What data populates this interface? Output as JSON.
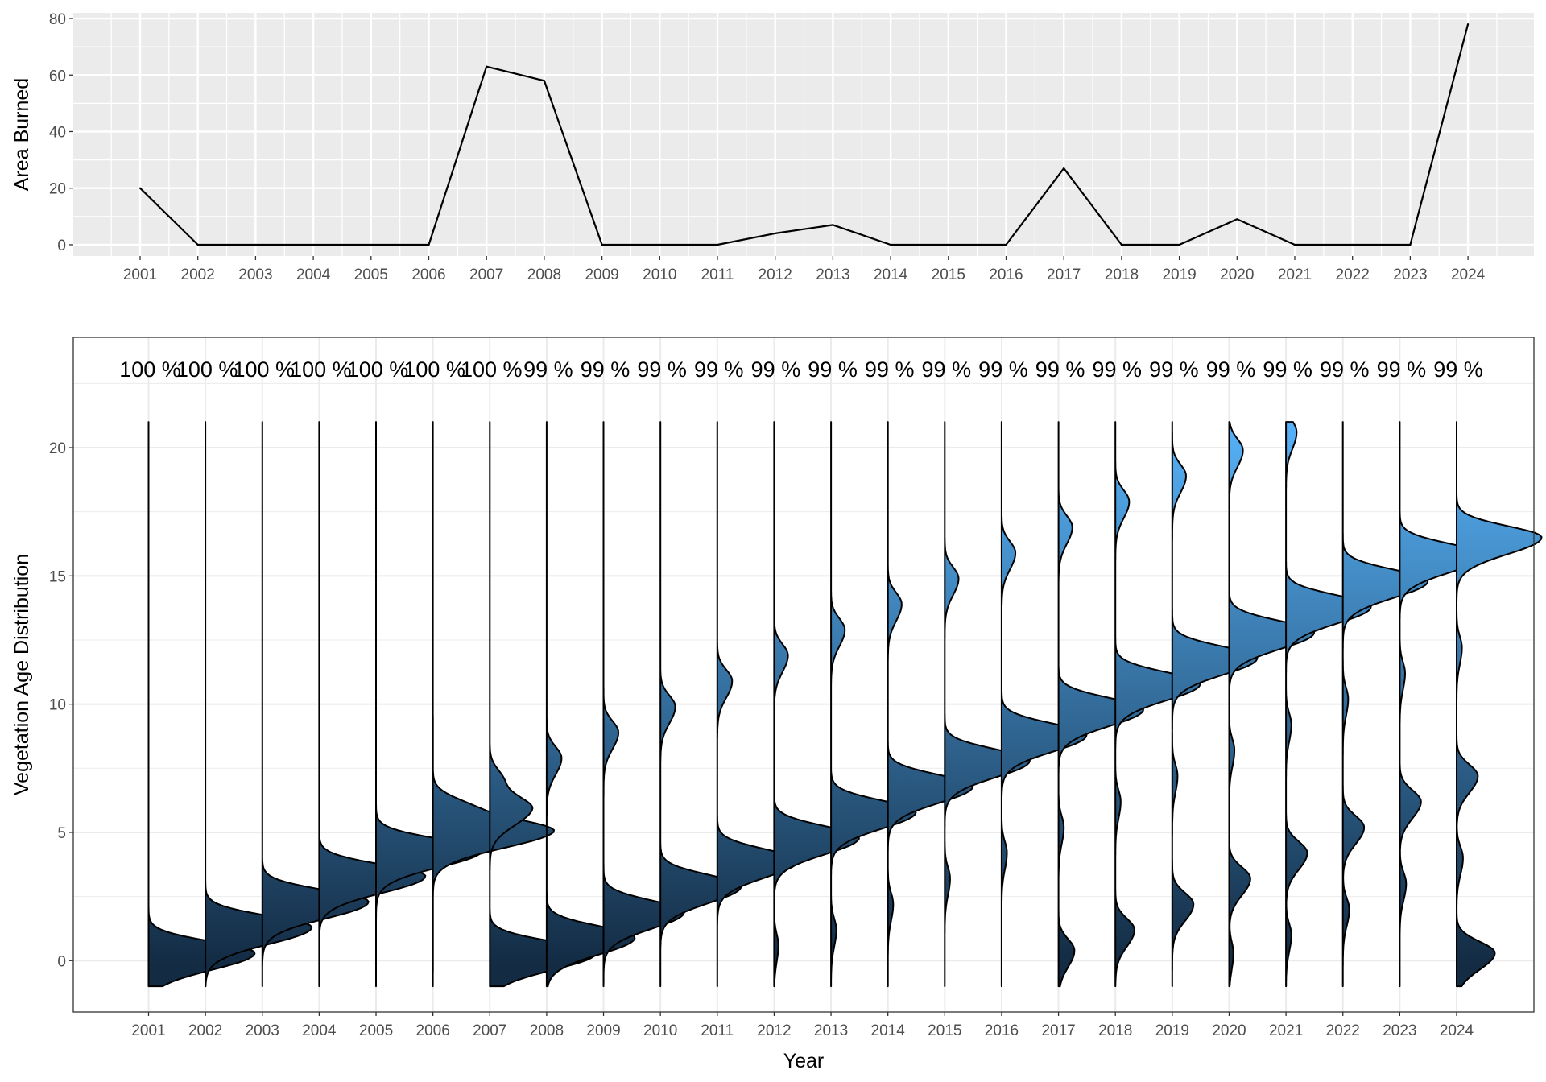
{
  "chart_data": [
    {
      "type": "line",
      "title": "",
      "xlabel": "",
      "ylabel": "Area Burned",
      "x": [
        "2001",
        "2002",
        "2003",
        "2004",
        "2005",
        "2006",
        "2007",
        "2008",
        "2009",
        "2010",
        "2011",
        "2012",
        "2013",
        "2014",
        "2015",
        "2016",
        "2017",
        "2018",
        "2019",
        "2020",
        "2021",
        "2022",
        "2023",
        "2024"
      ],
      "y": [
        20,
        0,
        0,
        0,
        0,
        0,
        63,
        58,
        0,
        0,
        0,
        4,
        7,
        0,
        0,
        0,
        27,
        0,
        0,
        9,
        0,
        0,
        0,
        78
      ],
      "ylim": [
        -4,
        82
      ],
      "yticks": [
        "0",
        "20",
        "40",
        "60",
        "80"
      ],
      "grid": true,
      "line_color": "#000000",
      "panel_background": "#ebebeb"
    },
    {
      "type": "area",
      "subtype": "half-violin density (ridgeline, vertical)",
      "title": "",
      "xlabel": "Year",
      "ylabel": "Vegetation Age Distribution",
      "categories": [
        "2001",
        "2002",
        "2003",
        "2004",
        "2005",
        "2006",
        "2007",
        "2008",
        "2009",
        "2010",
        "2011",
        "2012",
        "2013",
        "2014",
        "2015",
        "2016",
        "2017",
        "2018",
        "2019",
        "2020",
        "2021",
        "2022",
        "2023",
        "2024"
      ],
      "annotations": [
        "100 %",
        "100 %",
        "100 %",
        "100 %",
        "100 %",
        "100 %",
        "100 %",
        "99 %",
        "99 %",
        "99 %",
        "99 %",
        "99 %",
        "99 %",
        "99 %",
        "99 %",
        "99 %",
        "99 %",
        "99 %",
        "99 %",
        "99 %",
        "99 %",
        "99 %",
        "99 %",
        "99 %"
      ],
      "ylim": [
        -2.0,
        24.3
      ],
      "yticks": [
        "0",
        "5",
        "10",
        "15",
        "20"
      ],
      "density_range": [
        -1,
        21
      ],
      "series": [
        {
          "year": "2001",
          "peaks": [
            {
              "age": 0.3,
              "height": 1.0
            }
          ]
        },
        {
          "year": "2002",
          "peaks": [
            {
              "age": 1.3,
              "height": 1.0
            }
          ]
        },
        {
          "year": "2003",
          "peaks": [
            {
              "age": 2.3,
              "height": 1.0
            }
          ]
        },
        {
          "year": "2004",
          "peaks": [
            {
              "age": 3.3,
              "height": 1.0
            }
          ]
        },
        {
          "year": "2005",
          "peaks": [
            {
              "age": 4.3,
              "height": 1.0
            }
          ]
        },
        {
          "year": "2006",
          "peaks": [
            {
              "age": 5.0,
              "height": 1.0
            },
            {
              "age": 5.9,
              "height": 0.35
            }
          ]
        },
        {
          "year": "2007",
          "peaks": [
            {
              "age": 0.3,
              "height": 1.0
            },
            {
              "age": 5.9,
              "height": 0.37
            },
            {
              "age": 7.0,
              "height": 0.13
            }
          ]
        },
        {
          "year": "2008",
          "peaks": [
            {
              "age": 0.9,
              "height": 0.83
            },
            {
              "age": 7.9,
              "height": 0.14
            }
          ]
        },
        {
          "year": "2009",
          "peaks": [
            {
              "age": 1.9,
              "height": 0.76
            },
            {
              "age": 8.9,
              "height": 0.14
            }
          ]
        },
        {
          "year": "2010",
          "peaks": [
            {
              "age": 2.9,
              "height": 0.76
            },
            {
              "age": 9.9,
              "height": 0.14
            }
          ]
        },
        {
          "year": "2011",
          "peaks": [
            {
              "age": 3.9,
              "height": 0.76
            },
            {
              "age": 10.9,
              "height": 0.14
            }
          ]
        },
        {
          "year": "2012",
          "peaks": [
            {
              "age": 0.6,
              "height": 0.04
            },
            {
              "age": 4.8,
              "height": 0.8
            },
            {
              "age": 11.9,
              "height": 0.13
            }
          ]
        },
        {
          "year": "2013",
          "peaks": [
            {
              "age": 1.2,
              "height": 0.05
            },
            {
              "age": 5.8,
              "height": 0.8
            },
            {
              "age": 12.9,
              "height": 0.13
            }
          ]
        },
        {
          "year": "2014",
          "peaks": [
            {
              "age": 2.2,
              "height": 0.05
            },
            {
              "age": 6.8,
              "height": 0.8
            },
            {
              "age": 13.9,
              "height": 0.13
            }
          ]
        },
        {
          "year": "2015",
          "peaks": [
            {
              "age": 3.2,
              "height": 0.05
            },
            {
              "age": 7.8,
              "height": 0.8
            },
            {
              "age": 14.9,
              "height": 0.13
            }
          ]
        },
        {
          "year": "2016",
          "peaks": [
            {
              "age": 4.2,
              "height": 0.05
            },
            {
              "age": 8.8,
              "height": 0.8
            },
            {
              "age": 15.9,
              "height": 0.13
            }
          ]
        },
        {
          "year": "2017",
          "peaks": [
            {
              "age": 0.4,
              "height": 0.15
            },
            {
              "age": 5.2,
              "height": 0.05
            },
            {
              "age": 9.8,
              "height": 0.8
            },
            {
              "age": 16.9,
              "height": 0.13
            }
          ]
        },
        {
          "year": "2018",
          "peaks": [
            {
              "age": 1.2,
              "height": 0.18
            },
            {
              "age": 6.2,
              "height": 0.05
            },
            {
              "age": 10.8,
              "height": 0.8
            },
            {
              "age": 17.9,
              "height": 0.13
            }
          ]
        },
        {
          "year": "2019",
          "peaks": [
            {
              "age": 2.2,
              "height": 0.2
            },
            {
              "age": 7.2,
              "height": 0.05
            },
            {
              "age": 11.8,
              "height": 0.8
            },
            {
              "age": 18.9,
              "height": 0.13
            }
          ]
        },
        {
          "year": "2020",
          "peaks": [
            {
              "age": 0.3,
              "height": 0.04
            },
            {
              "age": 3.2,
              "height": 0.2
            },
            {
              "age": 8.2,
              "height": 0.05
            },
            {
              "age": 12.8,
              "height": 0.8
            },
            {
              "age": 19.9,
              "height": 0.13
            }
          ]
        },
        {
          "year": "2021",
          "peaks": [
            {
              "age": 1.0,
              "height": 0.05
            },
            {
              "age": 4.2,
              "height": 0.2
            },
            {
              "age": 9.2,
              "height": 0.05
            },
            {
              "age": 13.8,
              "height": 0.8
            },
            {
              "age": 20.6,
              "height": 0.1
            }
          ]
        },
        {
          "year": "2022",
          "peaks": [
            {
              "age": 2.0,
              "height": 0.06
            },
            {
              "age": 5.2,
              "height": 0.2
            },
            {
              "age": 10.2,
              "height": 0.05
            },
            {
              "age": 14.8,
              "height": 0.8
            }
          ]
        },
        {
          "year": "2023",
          "peaks": [
            {
              "age": 3.0,
              "height": 0.06
            },
            {
              "age": 6.2,
              "height": 0.2
            },
            {
              "age": 11.2,
              "height": 0.05
            },
            {
              "age": 15.8,
              "height": 0.8
            }
          ]
        },
        {
          "year": "2024",
          "peaks": [
            {
              "age": 0.3,
              "height": 0.36
            },
            {
              "age": 4.0,
              "height": 0.06
            },
            {
              "age": 7.2,
              "height": 0.2
            },
            {
              "age": 12.2,
              "height": 0.05
            },
            {
              "age": 16.5,
              "height": 0.8
            }
          ]
        }
      ],
      "fill_gradient": {
        "low": "#132b43",
        "high": "#56b1f7"
      },
      "grid": true,
      "panel_background": "#ffffff"
    }
  ]
}
